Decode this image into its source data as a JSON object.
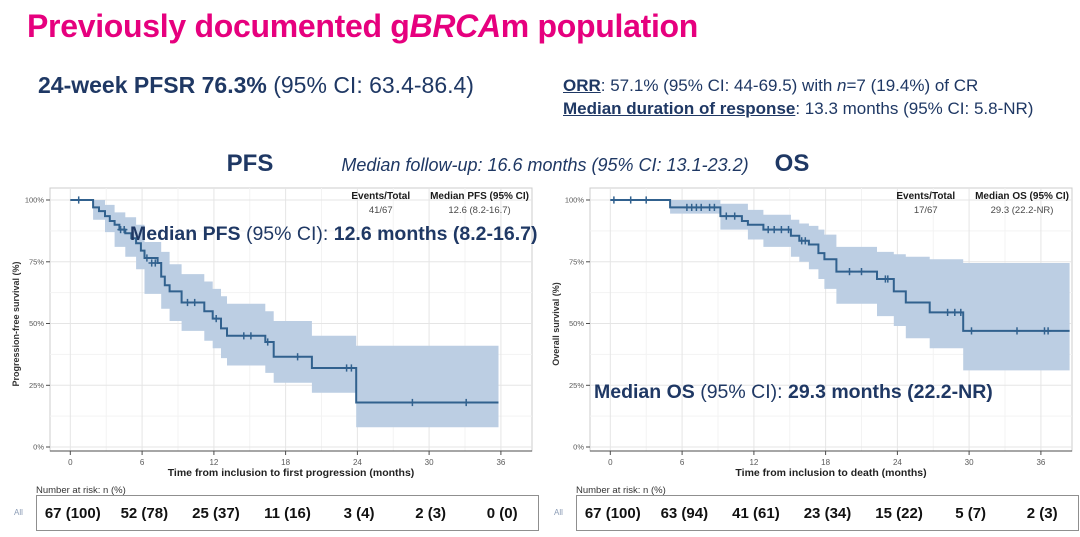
{
  "header": {
    "title_pre": "Previously documented g",
    "title_italic": "BRCA",
    "title_post": "m population",
    "pfsr_bold": "24-week PFSR 76.3%",
    "pfsr_rest": " (95% CI: 63.4-86.4)",
    "orr_label": "ORR",
    "orr_t1": ": 57.1% (95% CI: 44-69.5) with ",
    "orr_n": "n",
    "orr_t2": "=7 (19.4%) of CR",
    "dor_label": "Median duration of response",
    "dor_text": ": 13.3 months (95% CI: 5.8-NR)",
    "followup": "Median follow-up: 16.6 months (95% CI: 13.1-23.2)"
  },
  "style": {
    "title_pink": "#e6007e",
    "navy": "#1f3864",
    "curve": "#31618e",
    "band": "#bccee3",
    "grid_major": "#e5e5e5",
    "grid_minor": "#f3f3f3",
    "panel_border": "#cccccc",
    "axis": "#4d4d4d",
    "tick_text": "#595959"
  },
  "chart_data": [
    {
      "type": "line",
      "title": "PFS",
      "ylabel": "Progression-free survival (%)",
      "xlabel": "Time from inclusion to first progression (months)",
      "xlim": [
        -1.7,
        38.6
      ],
      "ylim": [
        0,
        100
      ],
      "xticks": [
        0,
        6,
        12,
        18,
        24,
        30,
        36
      ],
      "yticks": [
        0,
        25,
        50,
        75,
        100
      ],
      "ytick_labels": [
        "0%",
        "25%",
        "50%",
        "75%",
        "100%"
      ],
      "legend": {
        "col1_header": "Events/Total",
        "col2_header": "Median PFS (95% CI)",
        "col1_value": "41/67",
        "col2_value": "12.6 (8.2-16.7)"
      },
      "annotation": {
        "b1": "Median PFS",
        "r": " (95% CI): ",
        "b2": "12.6 months (8.2-16.7)"
      },
      "steps": [
        [
          0,
          100
        ],
        [
          1.9,
          97
        ],
        [
          2.4,
          95.5
        ],
        [
          2.9,
          93.5
        ],
        [
          3.3,
          91.5
        ],
        [
          3.7,
          90
        ],
        [
          4.1,
          88
        ],
        [
          4.6,
          86.5
        ],
        [
          5.1,
          84.5
        ],
        [
          5.5,
          82.5
        ],
        [
          5.9,
          79.5
        ],
        [
          6.2,
          76.5
        ],
        [
          7.3,
          74.5
        ],
        [
          7.6,
          69
        ],
        [
          7.9,
          65.5
        ],
        [
          8.3,
          63
        ],
        [
          9.3,
          58.5
        ],
        [
          11.2,
          55
        ],
        [
          11.9,
          52
        ],
        [
          12.6,
          48
        ],
        [
          13.1,
          45
        ],
        [
          16.3,
          42.5
        ],
        [
          17.0,
          36.5
        ],
        [
          20.2,
          32
        ],
        [
          23.9,
          18
        ],
        [
          35.8,
          18
        ]
      ],
      "censors": [
        [
          0.7,
          100
        ],
        [
          4.2,
          88
        ],
        [
          4.5,
          88
        ],
        [
          6.4,
          76.5
        ],
        [
          6.8,
          74.5
        ],
        [
          7.1,
          74.5
        ],
        [
          9.8,
          58.5
        ],
        [
          10.4,
          58.5
        ],
        [
          12.2,
          52
        ],
        [
          14.5,
          45
        ],
        [
          15.1,
          45
        ],
        [
          16.5,
          42.5
        ],
        [
          19.0,
          36.5
        ],
        [
          23.1,
          32
        ],
        [
          23.5,
          32
        ],
        [
          28.6,
          18
        ],
        [
          33.1,
          18
        ]
      ],
      "band": [
        [
          0,
          100,
          100
        ],
        [
          1.9,
          92,
          100
        ],
        [
          2.9,
          87,
          98
        ],
        [
          3.7,
          81,
          95
        ],
        [
          4.6,
          77,
          93
        ],
        [
          5.5,
          72,
          90
        ],
        [
          6.2,
          62,
          83
        ],
        [
          7.6,
          56,
          79
        ],
        [
          8.3,
          51,
          74
        ],
        [
          9.3,
          47,
          70
        ],
        [
          11.2,
          43,
          67
        ],
        [
          11.9,
          40,
          64
        ],
        [
          12.6,
          36,
          61
        ],
        [
          13.1,
          33,
          58
        ],
        [
          16.3,
          30,
          55
        ],
        [
          17.0,
          26,
          51
        ],
        [
          20.2,
          22,
          45
        ],
        [
          23.9,
          8,
          41
        ],
        [
          35.8,
          8,
          41
        ]
      ],
      "risk": {
        "label": "Number at risk: n (%)",
        "group": "All",
        "values": [
          "67 (100)",
          "52 (78)",
          "25 (37)",
          "11 (16)",
          "3 (4)",
          "2 (3)",
          "0 (0)"
        ]
      }
    },
    {
      "type": "line",
      "title": "OS",
      "ylabel": "Overall survival (%)",
      "xlabel": "Time from inclusion to death (months)",
      "xlim": [
        -1.7,
        38.6
      ],
      "ylim": [
        0,
        100
      ],
      "xticks": [
        0,
        6,
        12,
        18,
        24,
        30,
        36
      ],
      "yticks": [
        0,
        25,
        50,
        75,
        100
      ],
      "ytick_labels": [
        "0%",
        "25%",
        "50%",
        "75%",
        "100%"
      ],
      "legend": {
        "col1_header": "Events/Total",
        "col2_header": "Median OS (95% CI)",
        "col1_value": "17/67",
        "col2_value": "29.3 (22.2-NR)"
      },
      "annotation": {
        "b1": "Median OS",
        "r": " (95% CI): ",
        "b2": "29.3 months (22.2-NR)"
      },
      "steps": [
        [
          0,
          100
        ],
        [
          5.0,
          97
        ],
        [
          9.2,
          93.5
        ],
        [
          11.0,
          91.5
        ],
        [
          11.5,
          90
        ],
        [
          12.8,
          88
        ],
        [
          15.1,
          85.5
        ],
        [
          15.8,
          83.5
        ],
        [
          16.6,
          82
        ],
        [
          17.4,
          78.5
        ],
        [
          17.9,
          76
        ],
        [
          18.9,
          71
        ],
        [
          22.3,
          68
        ],
        [
          23.7,
          63
        ],
        [
          24.7,
          58.5
        ],
        [
          26.7,
          54.5
        ],
        [
          29.5,
          47
        ],
        [
          38.4,
          47
        ]
      ],
      "censors": [
        [
          0.3,
          100
        ],
        [
          1.7,
          100
        ],
        [
          3.0,
          100
        ],
        [
          6.4,
          97
        ],
        [
          6.8,
          97
        ],
        [
          7.2,
          97
        ],
        [
          7.6,
          97
        ],
        [
          8.3,
          97
        ],
        [
          8.7,
          97
        ],
        [
          9.7,
          93.5
        ],
        [
          10.4,
          93.5
        ],
        [
          13.2,
          88
        ],
        [
          13.7,
          88
        ],
        [
          14.3,
          88
        ],
        [
          14.9,
          88
        ],
        [
          16.0,
          83.5
        ],
        [
          16.3,
          83.5
        ],
        [
          20.0,
          71
        ],
        [
          21.0,
          71
        ],
        [
          23.0,
          68
        ],
        [
          23.2,
          68
        ],
        [
          28.2,
          54.5
        ],
        [
          28.8,
          54.5
        ],
        [
          29.3,
          54.5
        ],
        [
          30.2,
          47
        ],
        [
          34.0,
          47
        ],
        [
          36.3,
          47
        ],
        [
          36.6,
          47
        ]
      ],
      "band": [
        [
          0,
          100,
          100
        ],
        [
          5.0,
          94.5,
          100
        ],
        [
          9.2,
          88,
          98.5
        ],
        [
          11.5,
          84,
          96
        ],
        [
          12.8,
          81,
          94
        ],
        [
          15.1,
          77,
          92
        ],
        [
          15.8,
          75,
          90.5
        ],
        [
          16.6,
          72,
          89.5
        ],
        [
          17.4,
          68,
          88
        ],
        [
          17.9,
          64,
          86
        ],
        [
          18.9,
          58,
          81
        ],
        [
          22.3,
          53,
          79
        ],
        [
          23.7,
          49,
          78
        ],
        [
          24.7,
          44,
          77
        ],
        [
          26.7,
          40,
          76
        ],
        [
          29.5,
          31,
          74.5
        ],
        [
          38.4,
          31,
          74.5
        ]
      ],
      "risk": {
        "label": "Number at risk: n (%)",
        "group": "All",
        "values": [
          "67 (100)",
          "63 (94)",
          "41 (61)",
          "23 (34)",
          "15 (22)",
          "5 (7)",
          "2 (3)"
        ]
      }
    }
  ]
}
